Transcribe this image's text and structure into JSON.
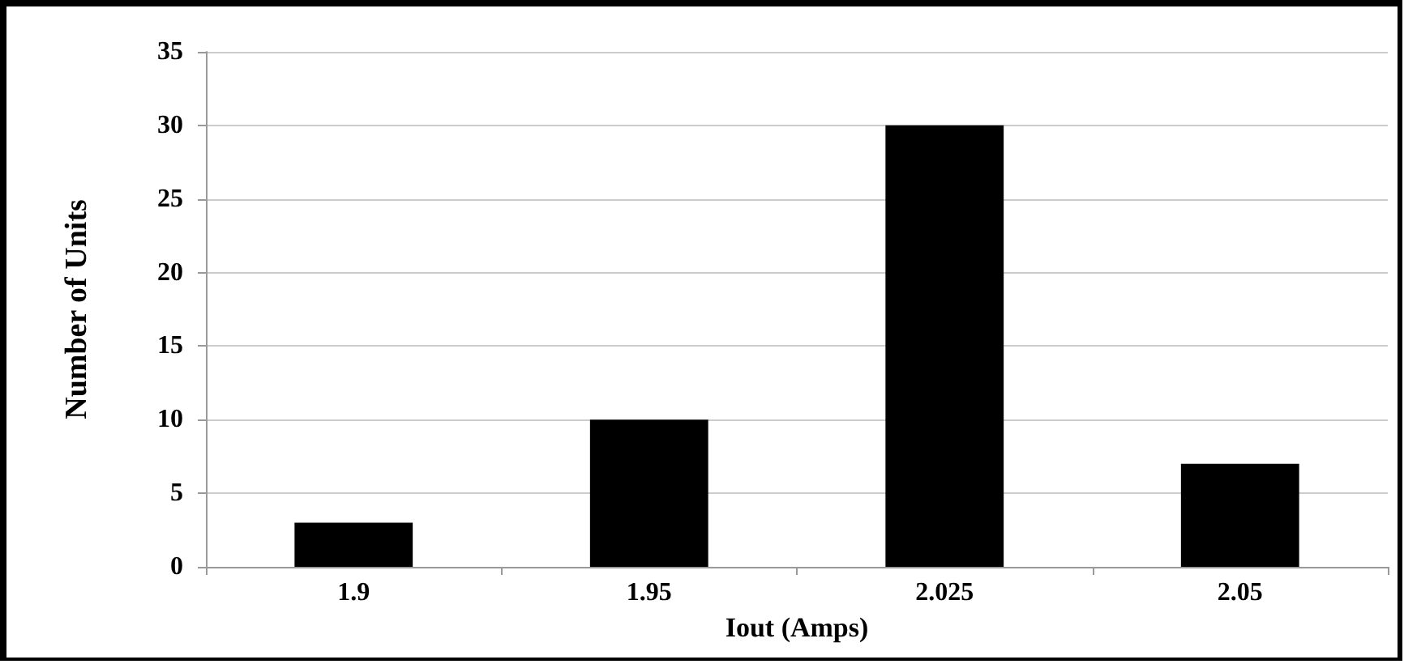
{
  "chart_data": {
    "type": "bar",
    "xlabel": "Iout (Amps)",
    "ylabel": "Number of Units",
    "categories": [
      "1.9",
      "1.95",
      "2.025",
      "2.05"
    ],
    "values": [
      3,
      10,
      30,
      7
    ],
    "color": "#000000",
    "ylim": [
      0,
      35
    ],
    "yticks": [
      0,
      5,
      10,
      15,
      20,
      25,
      30,
      35
    ],
    "grid": "y"
  }
}
